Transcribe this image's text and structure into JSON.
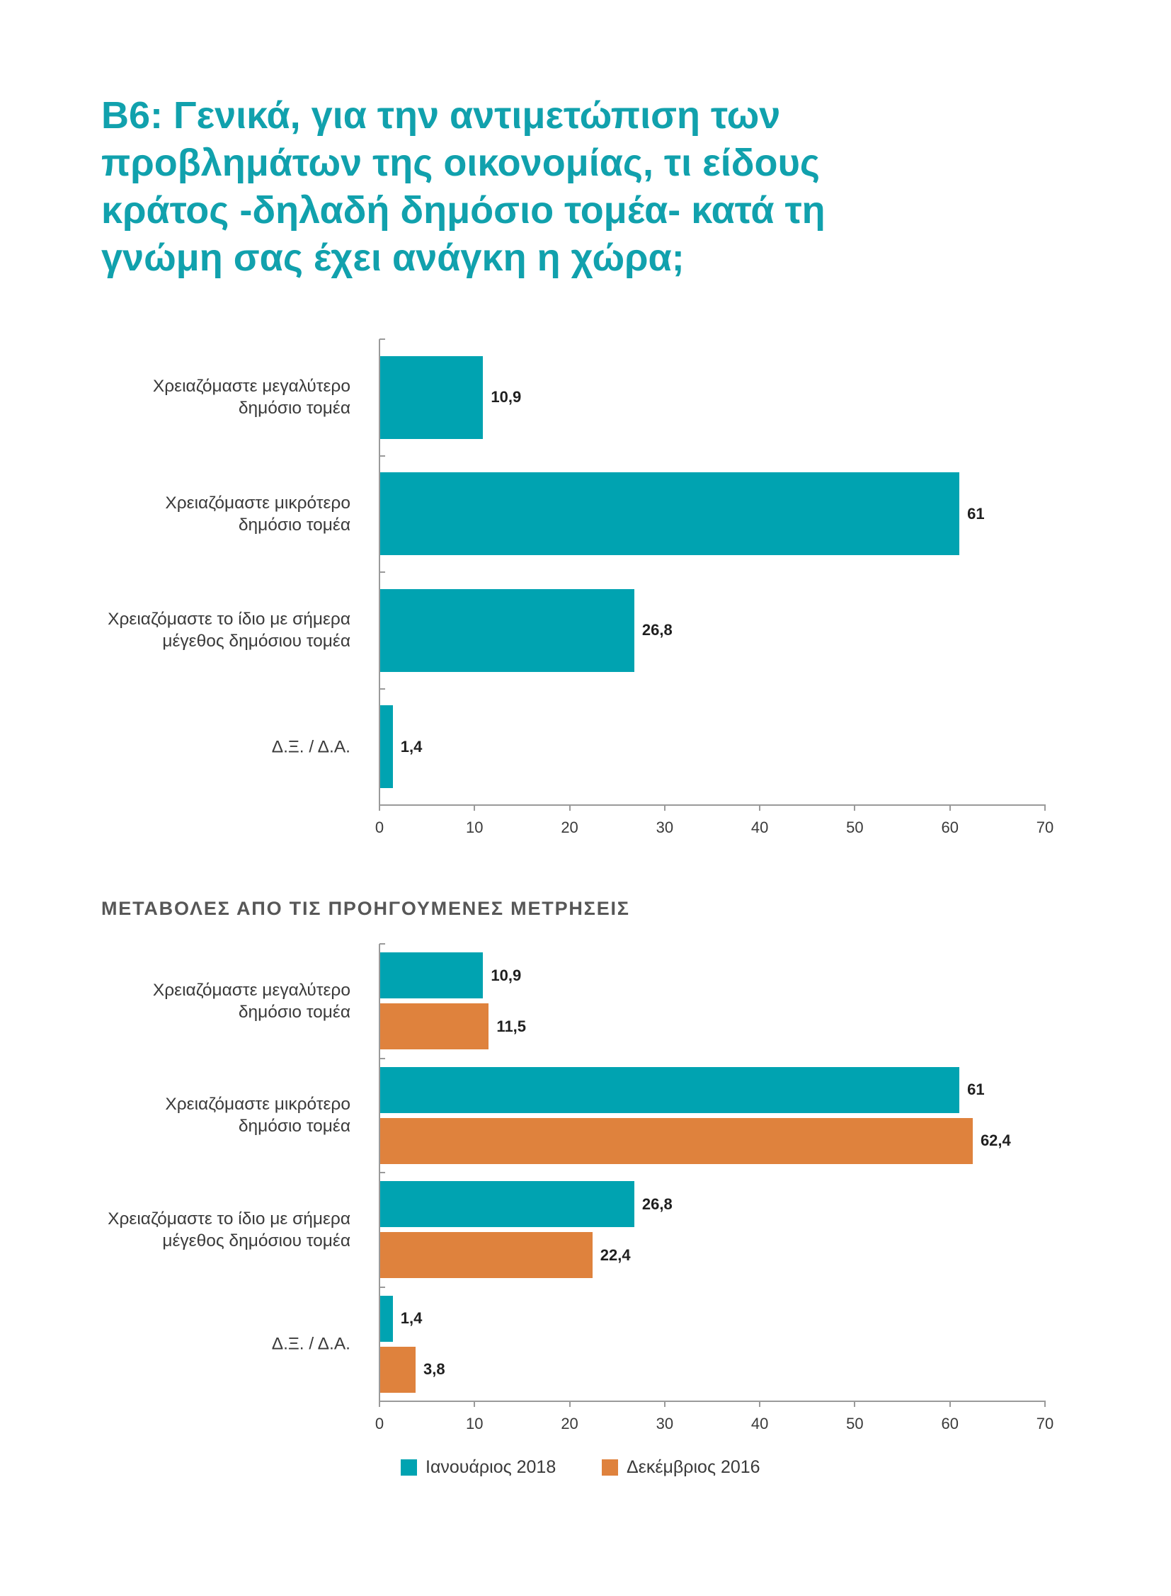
{
  "title": "B6: Γενικά, για την αντιμετώπιση των προβλημάτων της οικονομίας, τι είδους κράτος -δηλαδή δημόσιο τομέα- κατά τη γνώμη σας έχει ανάγκη η χώρα;",
  "colors": {
    "title": "#11a1ad",
    "subtitle": "#575757",
    "text": "#3a3a3a",
    "value_label": "#1f1f1f",
    "axis": "#9a9a9a"
  },
  "chart_data": [
    {
      "type": "bar",
      "orientation": "horizontal",
      "categories": [
        "Χρειαζόμαστε μεγαλύτερο\nδημόσιο τομέα",
        "Χρειαζόμαστε μικρότερο\nδημόσιο τομέα",
        "Χρειαζόμαστε το ίδιο με σήμερα\nμέγεθος δημόσιου τομέα",
        "Δ.Ξ. / Δ.Α."
      ],
      "series": [
        {
          "values": [
            10.9,
            61,
            26.8,
            1.4
          ],
          "value_labels": [
            "10,9",
            "61",
            "26,8",
            "1,4"
          ],
          "color": "#00a3b1"
        }
      ],
      "xlim": [
        0,
        70
      ],
      "x_ticks": [
        0,
        10,
        20,
        30,
        40,
        50,
        60,
        70
      ],
      "grid": false
    },
    {
      "type": "bar",
      "orientation": "horizontal",
      "title": "ΜΕΤΑΒΟΛΕΣ ΑΠΟ ΤΙΣ ΠΡΟΗΓΟΥΜΕΝΕΣ ΜΕΤΡΗΣΕΙΣ",
      "categories": [
        "Χρειαζόμαστε μεγαλύτερο\nδημόσιο τομέα",
        "Χρειαζόμαστε μικρότερο\nδημόσιο τομέα",
        "Χρειαζόμαστε το ίδιο με σήμερα\nμέγεθος δημόσιου τομέα",
        "Δ.Ξ. / Δ.Α."
      ],
      "series": [
        {
          "name": "Ιανουάριος 2018",
          "values": [
            10.9,
            61,
            26.8,
            1.4
          ],
          "value_labels": [
            "10,9",
            "61",
            "26,8",
            "1,4"
          ],
          "color": "#00a3b1"
        },
        {
          "name": "Δεκέμβριος 2016",
          "values": [
            11.5,
            62.4,
            22.4,
            3.8
          ],
          "value_labels": [
            "11,5",
            "62,4",
            "22,4",
            "3,8"
          ],
          "color": "#df823d"
        }
      ],
      "xlim": [
        0,
        70
      ],
      "x_ticks": [
        0,
        10,
        20,
        30,
        40,
        50,
        60,
        70
      ],
      "grid": false,
      "legend": "bottom-left"
    }
  ]
}
